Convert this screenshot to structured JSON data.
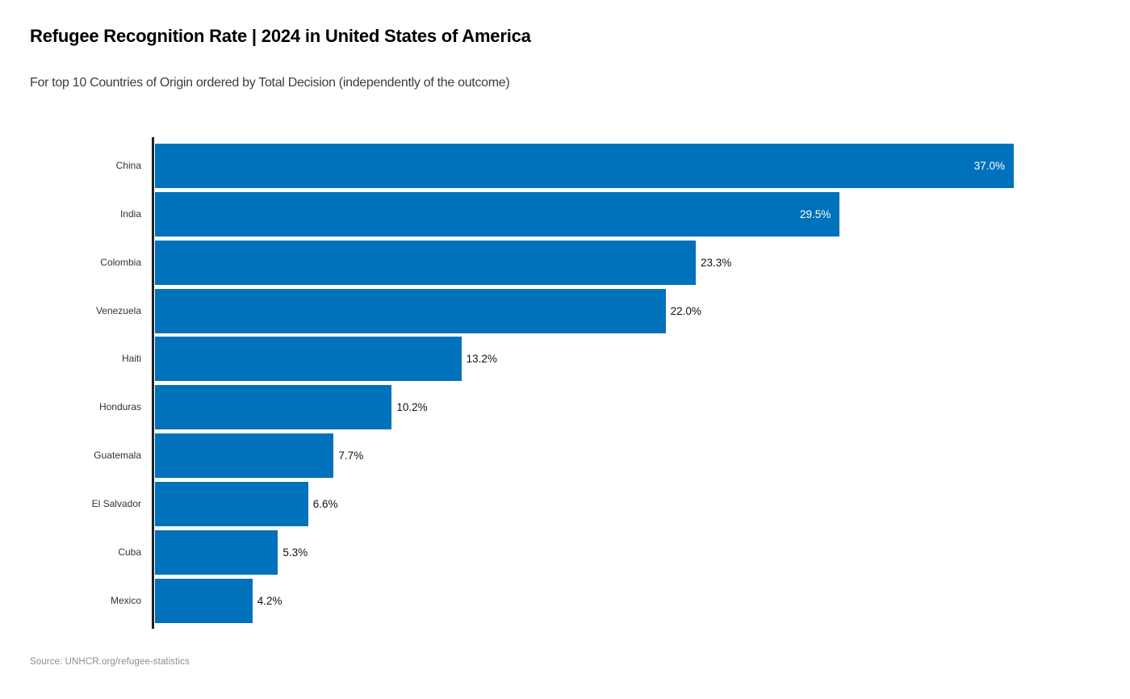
{
  "header": {
    "title": "Refugee Recognition Rate | 2024 in United States of America",
    "subtitle": "For top 10 Countries of Origin ordered by Total Decision (independently of the outcome)"
  },
  "footer": {
    "source": "Source: UNHCR.org/refugee-statistics"
  },
  "colors": {
    "bar": "#0072BC",
    "axis": "#231f20",
    "value_label_inside": "#ffffff",
    "value_label_outside": "#111111",
    "category_label": "#333333",
    "title": "#000000",
    "subtitle": "#3d3d3d",
    "source": "#8e8e8e"
  },
  "chart_data": {
    "type": "bar",
    "orientation": "horizontal",
    "title": "Refugee Recognition Rate | 2024 in United States of America",
    "subtitle": "For top 10 Countries of Origin ordered by Total Decision (independently of the outcome)",
    "categories": [
      "China",
      "India",
      "Colombia",
      "Venezuela",
      "Haiti",
      "Honduras",
      "Guatemala",
      "El Salvador",
      "Cuba",
      "Mexico"
    ],
    "values": [
      37.0,
      29.5,
      23.3,
      22.0,
      13.2,
      10.2,
      7.7,
      6.6,
      5.3,
      4.2
    ],
    "value_labels": [
      "37.0%",
      "29.5%",
      "23.3%",
      "22.0%",
      "13.2%",
      "10.2%",
      "7.7%",
      "6.6%",
      "5.3%",
      "4.2%"
    ],
    "label_inside": [
      true,
      true,
      false,
      false,
      false,
      false,
      false,
      false,
      false,
      false
    ],
    "xlabel": "",
    "ylabel": "",
    "xlim": [
      0,
      37.0
    ],
    "grid": false,
    "legend": false,
    "source": "Source: UNHCR.org/refugee-statistics"
  }
}
